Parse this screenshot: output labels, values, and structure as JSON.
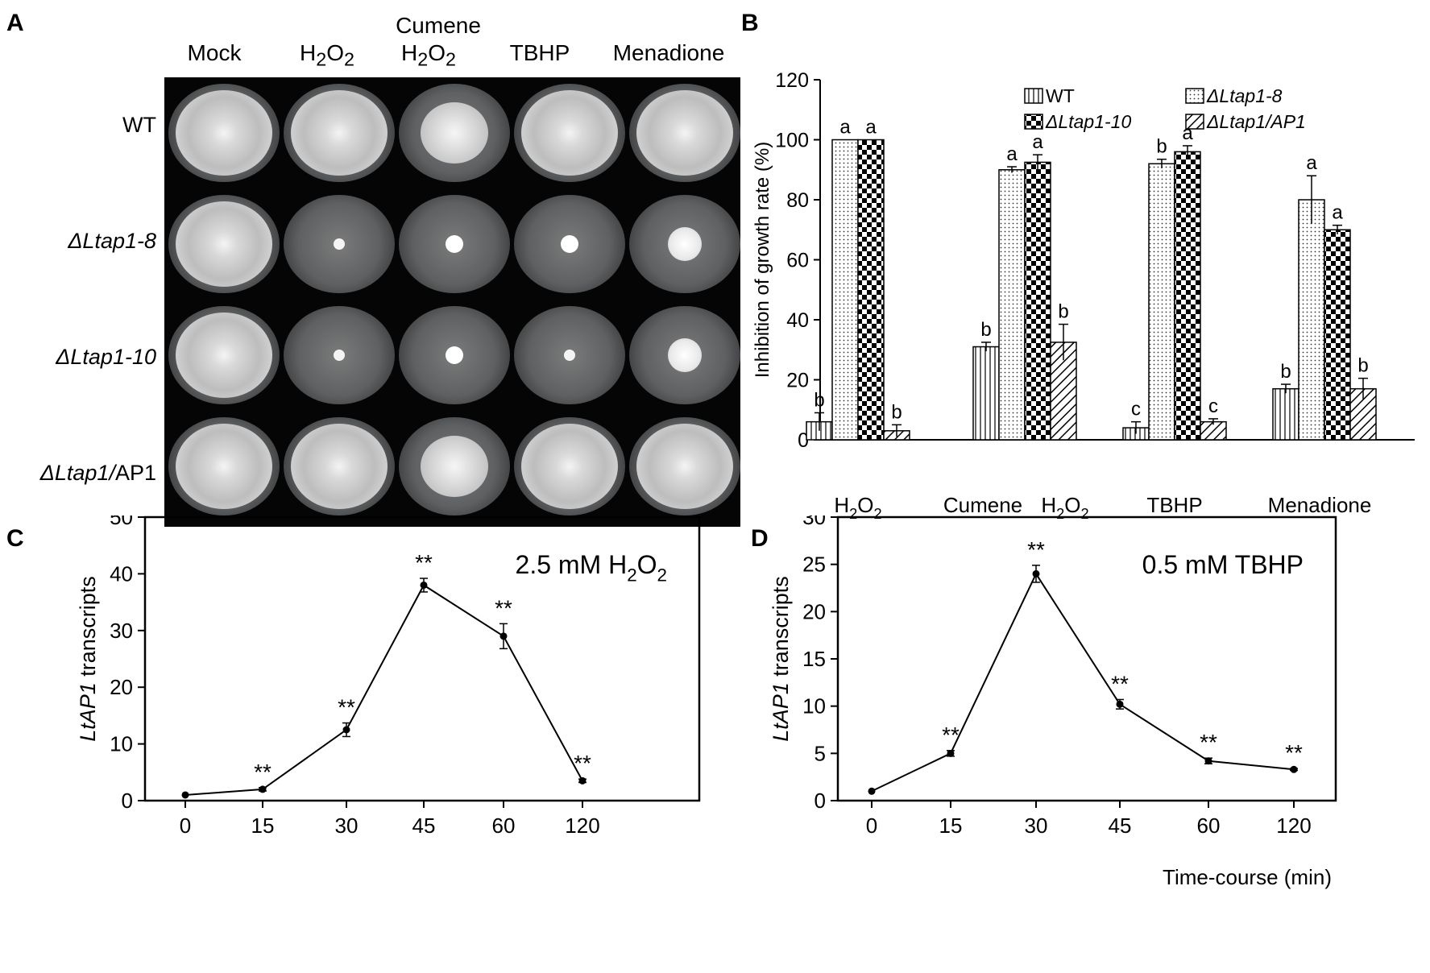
{
  "panel_labels": {
    "a": "A",
    "b": "B",
    "c": "C",
    "d": "D"
  },
  "panelA": {
    "columns": [
      "Mock",
      "H2O2",
      "Cumene H2O2",
      "TBHP",
      "Menadione"
    ],
    "column_heads": {
      "mock": "Mock",
      "h2o2": {
        "base": "H",
        "sub1": "2",
        "mid": "O",
        "sub2": "2"
      },
      "cumene_top": "Cumene",
      "cumene_bottom": {
        "base": "H",
        "sub1": "2",
        "mid": "O",
        "sub2": "2"
      },
      "tbhp": "TBHP",
      "menadione": "Menadione"
    },
    "rows": [
      {
        "label": "WT",
        "italic": false,
        "suffix": ""
      },
      {
        "label": "ΔLtap1-8",
        "italic": true,
        "suffix": ""
      },
      {
        "label": "ΔLtap1-10",
        "italic": true,
        "suffix": ""
      },
      {
        "label": "ΔLtap1/",
        "italic": true,
        "suffix": "AP1"
      }
    ],
    "colony_growth": [
      [
        "full",
        "full",
        "mid",
        "full",
        "full"
      ],
      [
        "full",
        "dot",
        "dot2",
        "dot2",
        "spot"
      ],
      [
        "full",
        "dot",
        "dot2",
        "dot",
        "spot"
      ],
      [
        "full",
        "full",
        "mid",
        "full",
        "full"
      ]
    ]
  },
  "chart_data": [
    {
      "panel": "B",
      "type": "bar",
      "ylabel": "Inhibition  of  growth  rate  (%)",
      "ylim": [
        0,
        120
      ],
      "yticks": [
        0,
        20,
        40,
        60,
        80,
        100,
        120
      ],
      "categories": [
        "H2O2",
        "Cumene  H2O2",
        "TBHP",
        "Menadione"
      ],
      "category_labels": {
        "h2o2": {
          "base": "H",
          "sub1": "2",
          "mid": "O",
          "sub2": "2"
        },
        "cumene": "Cumene",
        "cumene_h2o2": {
          "base": "H",
          "sub1": "2",
          "mid": "O",
          "sub2": "2"
        },
        "tbhp": "TBHP",
        "menadione": "Menadione"
      },
      "legend_position": "top",
      "series": [
        {
          "name": "WT",
          "pattern": "vertical-lines",
          "values": [
            6,
            31,
            4,
            17
          ],
          "errors": [
            3,
            1.5,
            2,
            1.5
          ],
          "letters": [
            "b",
            "b",
            "c",
            "b"
          ]
        },
        {
          "name": "ΔLtap1-8",
          "pattern": "dots",
          "values": [
            100,
            90,
            92,
            80
          ],
          "errors": [
            0,
            1,
            1.5,
            8
          ],
          "letters": [
            "a",
            "a",
            "b",
            "a"
          ]
        },
        {
          "name": "ΔLtap1-10",
          "pattern": "checker",
          "values": [
            100,
            92.5,
            96,
            70
          ],
          "errors": [
            0,
            2.5,
            2,
            1.5
          ],
          "letters": [
            "a",
            "a",
            "a",
            "a"
          ]
        },
        {
          "name": "ΔLtap1/AP1",
          "pattern": "diagonal",
          "values": [
            3,
            32.5,
            6,
            17
          ],
          "errors": [
            2,
            6,
            1,
            3.5
          ],
          "letters": [
            "b",
            "b",
            "c",
            "b"
          ]
        }
      ]
    },
    {
      "panel": "C",
      "type": "line",
      "annotation": {
        "base": "2.5 mM H",
        "sub1": "2",
        "mid": "O",
        "sub2": "2"
      },
      "ylabel_italic": "LtAP1",
      "ylabel_rest": " transcripts",
      "ylim": [
        0,
        50
      ],
      "yticks": [
        0,
        10,
        20,
        30,
        40,
        50
      ],
      "x": [
        "0",
        "15",
        "30",
        "45",
        "60",
        "120"
      ],
      "y": [
        1,
        2,
        12.5,
        38,
        29,
        3.5
      ],
      "errors": [
        0,
        0.3,
        1.2,
        1.2,
        2.2,
        0.3
      ],
      "significance": [
        "",
        "**",
        "**",
        "**",
        "**",
        "**"
      ]
    },
    {
      "panel": "D",
      "type": "line",
      "annotation": "0.5 mM TBHP",
      "ylabel_italic": "LtAP1",
      "ylabel_rest": " transcripts",
      "xlabel": "Time-course  (min)",
      "ylim": [
        0,
        30
      ],
      "yticks": [
        0,
        5,
        10,
        15,
        20,
        25,
        30
      ],
      "x": [
        "0",
        "15",
        "30",
        "45",
        "60",
        "120"
      ],
      "y": [
        1,
        5,
        24,
        10.2,
        4.2,
        3.3
      ],
      "errors": [
        0,
        0.3,
        0.9,
        0.5,
        0.3,
        0.1
      ],
      "significance": [
        "",
        "**",
        "**",
        "**",
        "**",
        "**"
      ]
    }
  ]
}
